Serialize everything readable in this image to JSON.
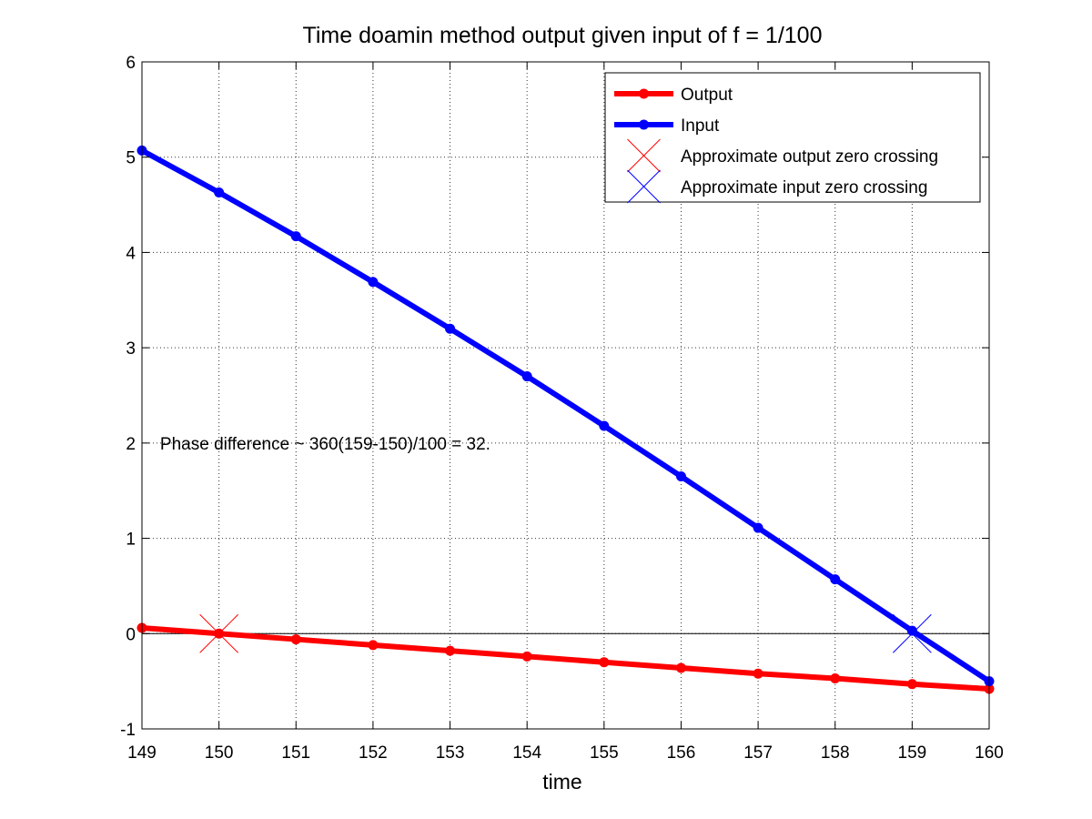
{
  "chart_data": {
    "type": "line",
    "title": "Time doamin method output given input of f = 1/100",
    "xlabel": "time",
    "ylabel": "",
    "xlim": [
      149,
      160
    ],
    "ylim": [
      -1,
      6
    ],
    "xticks": [
      149,
      150,
      151,
      152,
      153,
      154,
      155,
      156,
      157,
      158,
      159,
      160
    ],
    "yticks": [
      -1,
      0,
      1,
      2,
      3,
      4,
      5,
      6
    ],
    "grid": true,
    "legend_position": "top-right",
    "zero_line": true,
    "x": [
      149,
      150,
      151,
      152,
      153,
      154,
      155,
      156,
      157,
      158,
      159,
      160
    ],
    "series": [
      {
        "name": "Output",
        "color": "#ff0000",
        "values": [
          0.06,
          0.0,
          -0.06,
          -0.12,
          -0.18,
          -0.24,
          -0.3,
          -0.36,
          -0.42,
          -0.47,
          -0.53,
          -0.58
        ]
      },
      {
        "name": "Input",
        "color": "#0000ff",
        "values": [
          5.07,
          4.63,
          4.17,
          3.69,
          3.2,
          2.7,
          2.18,
          1.65,
          1.11,
          0.57,
          0.03,
          -0.5
        ]
      }
    ],
    "markers": [
      {
        "name": "Approximate output zero crossing",
        "color": "#ff0000",
        "x": 150,
        "y": 0.0
      },
      {
        "name": "Approximate input zero crossing",
        "color": "#0000ff",
        "x": 159,
        "y": 0.0
      }
    ],
    "annotations": [
      {
        "text": "Phase difference ~ 360(159-150)/100 = 32.",
        "x": 149.2,
        "y": 2.0
      }
    ]
  }
}
